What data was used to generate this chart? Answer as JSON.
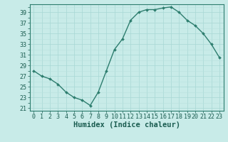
{
  "x": [
    0,
    1,
    2,
    3,
    4,
    5,
    6,
    7,
    8,
    9,
    10,
    11,
    12,
    13,
    14,
    15,
    16,
    17,
    18,
    19,
    20,
    21,
    22,
    23
  ],
  "y": [
    28,
    27,
    26.5,
    25.5,
    24,
    23,
    22.5,
    21.5,
    24,
    28,
    32,
    34,
    37.5,
    39,
    39.5,
    39.5,
    39.8,
    40,
    39,
    37.5,
    36.5,
    35,
    33,
    30.5
  ],
  "line_color": "#2d7d6e",
  "marker": "D",
  "marker_size": 2.0,
  "bg_color": "#c8ebe8",
  "grid_color_major": "#a8d8d4",
  "grid_color_minor": "#b8e2de",
  "xlabel": "Humidex (Indice chaleur)",
  "xlabel_fontsize": 7.5,
  "xlabel_color": "#1a5c50",
  "xlim": [
    -0.5,
    23.5
  ],
  "ylim": [
    20.5,
    40.5
  ],
  "yticks": [
    21,
    23,
    25,
    27,
    29,
    31,
    33,
    35,
    37,
    39
  ],
  "tick_fontsize": 6.0,
  "tick_color": "#1a5c50",
  "line_width": 1.0,
  "spine_color": "#2d7d6e"
}
